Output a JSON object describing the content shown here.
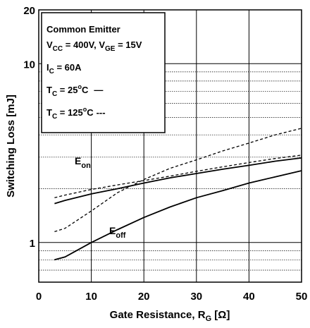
{
  "chart_data": {
    "type": "line",
    "xlabel_main": "Gate Resistance, R",
    "xlabel_sub": "G",
    "xlabel_unit": " [Ω]",
    "ylabel": "Switching Loss [mJ]",
    "xlim": [
      0,
      50
    ],
    "ylim": [
      0.6,
      20
    ],
    "yscale": "log",
    "x_ticks": [
      0,
      10,
      20,
      30,
      40,
      50
    ],
    "x_tick_labels": [
      "0",
      "10",
      "20",
      "30",
      "40",
      "50"
    ],
    "y_ticks": [
      1,
      10,
      20
    ],
    "y_tick_labels": [
      "1",
      "10",
      "20"
    ],
    "grid": true,
    "legend": {
      "title": "Common Emitter",
      "line1": {
        "v1": "V",
        "v1_sub": "CC",
        "v1_val": " = 400V, V",
        "v2_sub": "GE",
        "v2_val": " = 15V"
      },
      "line2": {
        "i": "I",
        "i_sub": "C",
        "i_val": " = 60A"
      },
      "line3": {
        "t": "T",
        "t_sub": "C",
        "t_val": " = 25",
        "t_sup": "o",
        "t_unit": "C",
        "style": "—"
      },
      "line4": {
        "t": "T",
        "t_sub": "C",
        "t_val": " = 125",
        "t_sup": "o",
        "t_unit": "C",
        "style": "---"
      },
      "position": "top-left"
    },
    "annotations": {
      "eon_main": "E",
      "eon_sub": "on",
      "eoff_main": "E",
      "eoff_sub": "off"
    },
    "series": [
      {
        "key": "eon_25",
        "style": "solid",
        "x": [
          3,
          5,
          10,
          15,
          20,
          25,
          30,
          35,
          40,
          45,
          50
        ],
        "y": [
          1.65,
          1.72,
          1.87,
          2.0,
          2.15,
          2.3,
          2.43,
          2.57,
          2.7,
          2.85,
          2.97
        ]
      },
      {
        "key": "eon_125",
        "style": "dashed",
        "x": [
          3,
          5,
          10,
          15,
          20,
          25,
          30,
          35,
          40,
          45,
          50
        ],
        "y": [
          1.78,
          1.84,
          1.98,
          2.1,
          2.22,
          2.35,
          2.5,
          2.65,
          2.8,
          2.95,
          3.08
        ]
      },
      {
        "key": "eoff_25",
        "style": "solid",
        "x": [
          3,
          5,
          10,
          15,
          20,
          25,
          30,
          35,
          40,
          45,
          50
        ],
        "y": [
          0.8,
          0.83,
          1.0,
          1.18,
          1.38,
          1.58,
          1.78,
          1.95,
          2.15,
          2.33,
          2.52
        ]
      },
      {
        "key": "eoff_125",
        "style": "dashed",
        "x": [
          3,
          5,
          10,
          15,
          20,
          25,
          30,
          35,
          40,
          45,
          50
        ],
        "y": [
          1.15,
          1.2,
          1.5,
          1.9,
          2.25,
          2.6,
          2.9,
          3.25,
          3.6,
          4.0,
          4.35
        ]
      }
    ]
  }
}
